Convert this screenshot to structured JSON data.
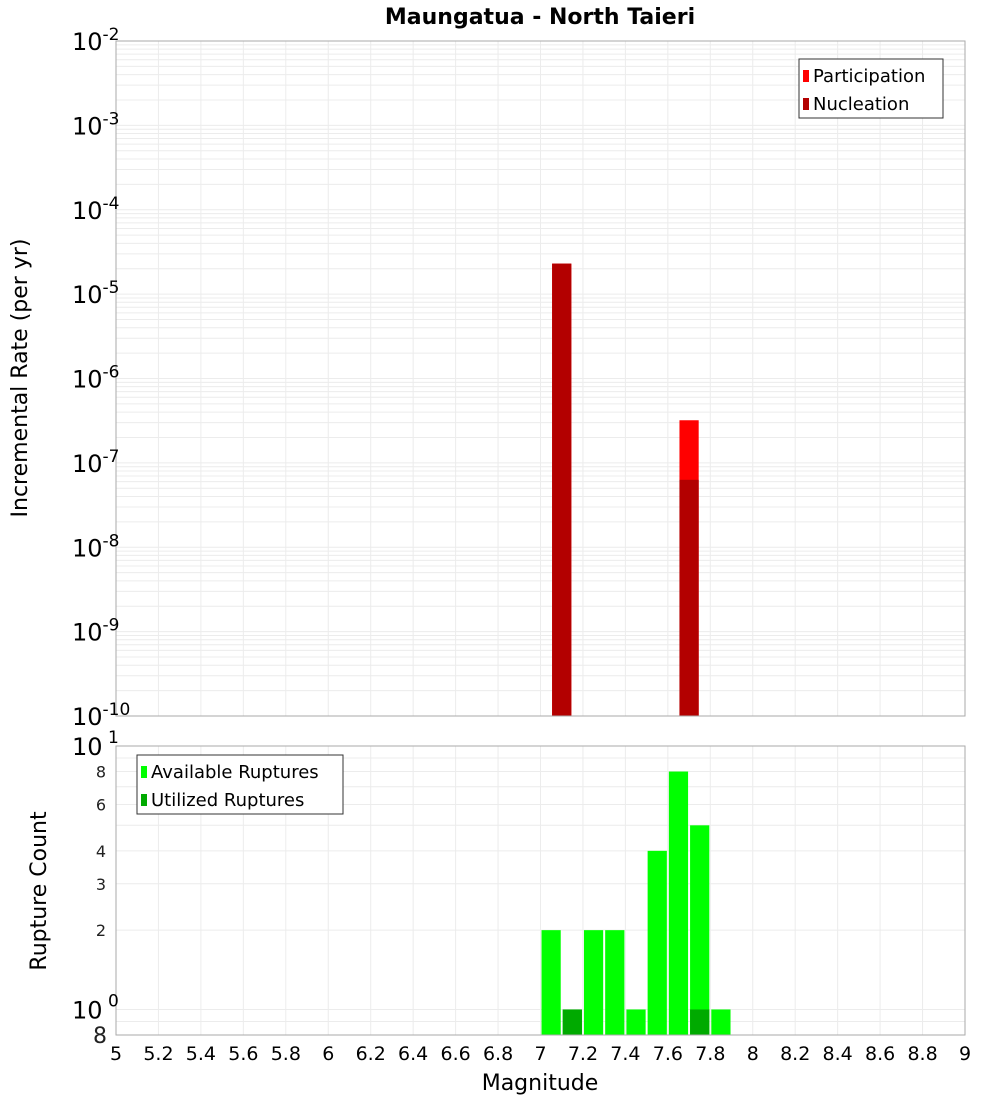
{
  "chart_data": [
    {
      "type": "bar",
      "title": "Maungatua - North Taieri",
      "xlabel": "Magnitude",
      "ylabel": "Incremental Rate (per yr)",
      "yscale": "log",
      "ylim": [
        1e-10,
        0.01
      ],
      "xlim": [
        5,
        9
      ],
      "grid": true,
      "legend_position": "top-right",
      "y_tick_labels": [
        "10^-2",
        "10^-3",
        "10^-4",
        "10^-5",
        "10^-6",
        "10^-7",
        "10^-8",
        "10^-9",
        "10^-10"
      ],
      "bin_width": 0.1,
      "series": [
        {
          "name": "Participation",
          "color": "#ff0000",
          "x": [
            7.1,
            7.7
          ],
          "values": [
            2.3e-05,
            3.2e-07
          ]
        },
        {
          "name": "Nucleation",
          "color": "#b30000",
          "x": [
            7.1,
            7.7
          ],
          "values": [
            2.3e-05,
            6.3e-08
          ]
        }
      ]
    },
    {
      "type": "bar",
      "title": "",
      "xlabel": "Magnitude",
      "ylabel": "Rupture Count",
      "yscale": "log",
      "ylim": [
        0.8,
        10
      ],
      "xlim": [
        5,
        9
      ],
      "grid": true,
      "legend_position": "top-left",
      "x_tick_labels": [
        "5",
        "5.2",
        "5.4",
        "5.6",
        "5.8",
        "6",
        "6.2",
        "6.4",
        "6.6",
        "6.8",
        "7",
        "7.2",
        "7.4",
        "7.6",
        "7.8",
        "8",
        "8.2",
        "8.4",
        "8.6",
        "8.8",
        "9"
      ],
      "y_tick_labels": [
        "10^1",
        "8",
        "6",
        "4",
        "3",
        "2",
        "10^0",
        "8"
      ],
      "bin_width": 0.1,
      "series": [
        {
          "name": "Available Ruptures",
          "color": "#00ff00",
          "x": [
            7.05,
            7.15,
            7.25,
            7.35,
            7.45,
            7.55,
            7.65,
            7.75,
            7.85
          ],
          "values": [
            2,
            1,
            2,
            2,
            1,
            4,
            8,
            5,
            1
          ]
        },
        {
          "name": "Utilized Ruptures",
          "color": "#00aa00",
          "x": [
            7.15,
            7.75
          ],
          "values": [
            1,
            1
          ]
        }
      ]
    }
  ],
  "labels": {
    "title": "Maungatua - North Taieri",
    "top_ylabel": "Incremental Rate (per yr)",
    "bottom_ylabel": "Rupture Count",
    "xlabel": "Magnitude"
  }
}
